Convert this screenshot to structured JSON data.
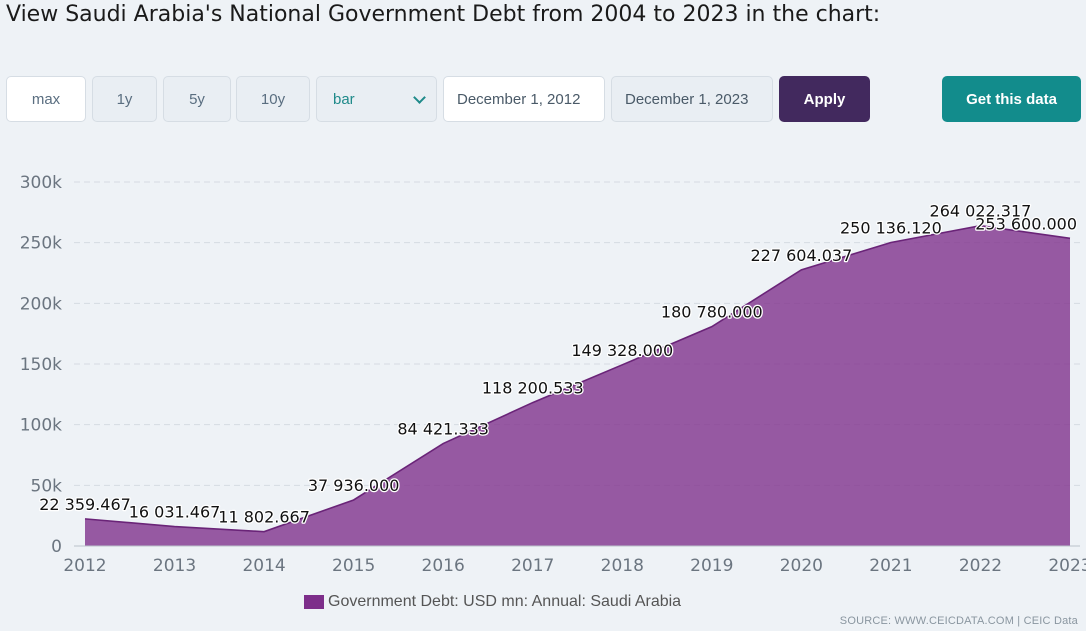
{
  "header": {
    "title": "View Saudi Arabia's National Government Debt from 2004 to 2023 in the chart:"
  },
  "controls": {
    "ranges": [
      "max",
      "1y",
      "5y",
      "10y"
    ],
    "active_range": "max",
    "chart_type": "bar",
    "start_date": "December 1, 2012",
    "end_date": "December 1, 2023",
    "apply_label": "Apply",
    "get_data_label": "Get this data"
  },
  "colors": {
    "series_fill": "#7d2e8a",
    "series_line": "#6a2478",
    "apply_bg": "#42295e",
    "get_data_bg": "#128c8c"
  },
  "chart_data": {
    "type": "area",
    "title": "",
    "xlabel": "",
    "ylabel": "",
    "x": [
      2012,
      2013,
      2014,
      2015,
      2016,
      2017,
      2018,
      2019,
      2020,
      2021,
      2022,
      2023
    ],
    "series": [
      {
        "name": "Government Debt: USD mn: Annual: Saudi Arabia",
        "values": [
          22359.467,
          16031.467,
          11802.667,
          37936.0,
          84421.333,
          118200.533,
          149328.0,
          180780.0,
          227604.037,
          250136.12,
          264022.317,
          253600.0
        ],
        "labels": [
          "22 359.467",
          "16 031.467",
          "11 802.667",
          "37 936.000",
          "84 421.333",
          "118 200.533",
          "149 328.000",
          "180 780.000",
          "227 604.037",
          "250 136.120",
          "264 022.317",
          "253 600.000"
        ]
      }
    ],
    "y_ticks": [
      0,
      50000,
      100000,
      150000,
      200000,
      250000,
      300000
    ],
    "y_tick_labels": [
      "0",
      "50k",
      "100k",
      "150k",
      "200k",
      "250k",
      "300k"
    ],
    "x_tick_labels": [
      "2012",
      "2013",
      "2014",
      "2015",
      "2016",
      "2017",
      "2018",
      "2019",
      "2020",
      "2021",
      "2022",
      "2023"
    ],
    "ylim": [
      0,
      300000
    ],
    "grid": true,
    "legend": "bottom-center"
  },
  "legend": {
    "label": "Government Debt: USD mn: Annual: Saudi Arabia"
  },
  "footer": {
    "source": "SOURCE: WWW.CEICDATA.COM | CEIC Data"
  }
}
